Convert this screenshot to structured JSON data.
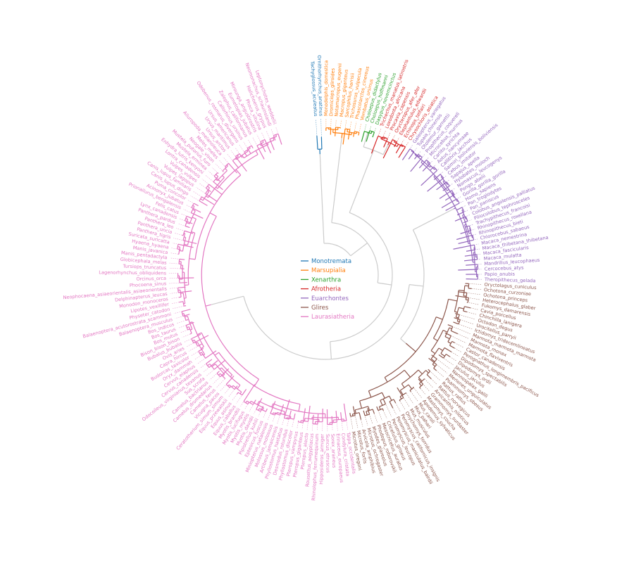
{
  "title": "",
  "legend": [
    {
      "name": "Monotremata",
      "color": "#1f77b4"
    },
    {
      "name": "Marsupialia",
      "color": "#ff7f0e"
    },
    {
      "name": "Xenarthra",
      "color": "#2ca02c"
    },
    {
      "name": "Afrotheria",
      "color": "#d62728"
    },
    {
      "name": "Euarchontes",
      "color": "#9467bd"
    },
    {
      "name": "Glires",
      "color": "#8c564b"
    },
    {
      "name": "Laurasiatheria",
      "color": "#e377c2"
    }
  ],
  "stem_color": "#cccccc",
  "clades": [
    {
      "name": "Monotremata",
      "color": "#1f77b4",
      "taxa": [
        "Tachyglossus_aculeatus",
        "Ornithorhynchus_anatinus"
      ]
    },
    {
      "name": "Marsupialia",
      "color": "#ff7f0e",
      "taxa": [
        "Monodelphis_domestica",
        "Dromiciops_gliroides",
        "Notamacropus_eugenii",
        "Macropus_giganteus",
        "Sarcophilus_harrisii",
        "Trichosurus_vulpecula",
        "Phascolarctos_cinereus",
        "Vombatus_ursinus"
      ]
    },
    {
      "name": "Xenarthra",
      "color": "#2ca02c",
      "taxa": [
        "Choloepus_didactylus",
        "Choloepus_hoffmanni",
        "Dasypus_novemcinctus"
      ]
    },
    {
      "name": "Afrotheria",
      "color": "#d62728",
      "taxa": [
        "Trichechus_manatus_latirostris",
        "Loxodonta_africana",
        "Procavia_capensis",
        "Orycteropus_afer_afer",
        "Elephantulus_edwardii",
        "Echinops_telfairi",
        "Chrysochloris_asiatica"
      ]
    },
    {
      "name": "Euarchontes",
      "color": "#9467bd",
      "taxa": [
        "Galeopterus_variegatus",
        "Tupaia_chinensis",
        "Otolemur_garnettii",
        "Propithecus_coquereli",
        "Microcebus_murinus",
        "Carlito_syrichta",
        "Aotus_nancymaae",
        "Callithrix_jacchus",
        "Saimiri_boliviensis_boliviensis",
        "Cebus_imitator",
        "Sapajus_apella",
        "Hylobates_moloch",
        "Nomascus_leucogenys",
        "Pongo_abelii",
        "Gorilla_gorilla_gorilla",
        "Homo_sapiens",
        "Pan_troglodytes",
        "Pan_paniscus",
        "Colobus_angolensis_palliatus",
        "Piliocolobus_tephrosceles",
        "Trachypithecus_francoisi",
        "Rhinopithecus_roxellana",
        "Rhinopithecus_bieti",
        "Chlorocebus_sabaeus",
        "Macaca_nemestrina",
        "Macaca_thibetana_thibetana",
        "Macaca_fascicularis",
        "Macaca_mulatta",
        "Mandrillus_leucophaeus",
        "Cercocebus_atys",
        "Papio_anubis",
        "Theropithecus_gelada"
      ]
    },
    {
      "name": "Glires",
      "color": "#8c564b",
      "taxa": [
        "Oryctolagus_cuniculus",
        "Ochotona_curzoniae",
        "Ochotona_princeps",
        "Heterocephalus_glaber",
        "Fukomys_damarensis",
        "Cavia_porcellus",
        "Chinchilla_lanigera",
        "Octodon_degus",
        "Urocitellus_parryii",
        "Ictidomys_tridecemlineatus",
        "Marmota_marmota_marmota",
        "Marmota_monax",
        "Marmota_flaviventris",
        "Castor_canadensis",
        "Perognathus_longimembris_pacificus",
        "Dipodomys_spectabilis",
        "Dipodomys_ordii",
        "Jaculus_jaculus",
        "Nannospalax_galili",
        "Meriones_unguiculatus",
        "Psammomys_obesus",
        "Rattus_rattus",
        "Rattus_norvegicus",
        "Arvicanthis_niloticus",
        "Grammomys_surdaster",
        "Mastomys_coucha",
        "Apodemus_sylvaticus",
        "Mus_caroli",
        "Mus_pahari",
        "Mus_musculus",
        "Onychomys_torridus",
        "Peromyscus_californicus_insignis",
        "Peromyscus_maniculatus_bairdii",
        "Peromyscus_leucopus",
        "Cricetulus_griseus",
        "Mesocricetus_auratus",
        "Phodopus_roborovskii",
        "Myodes_glareolus",
        "Microtus_ochrogaster",
        "Arvicola_amphibius",
        "Microtus_fortis",
        "Microtus_oregoni"
      ]
    },
    {
      "name": "Laurasiatheria",
      "color": "#e377c2",
      "taxa": [
        "Talpa_occidentalis",
        "Condylura_cristata",
        "Erinaceus_europaeus",
        "Sorex_araneus",
        "Suncus_etruscus",
        "Hipposideros_armiger",
        "Rhinolophus_ferrumequinum",
        "Rousettus_aegyptiacus",
        "Pteropus_alecto",
        "Pteropus_giganteus",
        "Pteropus_vampyrus",
        "Phyllostomus_discolor",
        "Desmodus_rotundus",
        "Phyllostomus_hastatus",
        "Artibeus_jamaicensis",
        "Molossus_molossus",
        "Miniopterus_natalensis",
        "Eptesicus_fuscus",
        "Pipistrellus_kuhlii",
        "Myotis_davidii",
        "Myotis_myotis",
        "Myotis_lucifugus",
        "Myotis_brandtii",
        "Equus_caballus",
        "Equus_asinus",
        "Equus_przewalskii",
        "Ceratotherium_simum_simum",
        "Vicugna_pacos",
        "Camelus_ferus",
        "Camelus_dromedarius",
        "Camelus_bactrianus",
        "Sus_scrofa",
        "Odocoileus_virginianus_texanus",
        "Cervus_canadensis",
        "Cervus_elaphus",
        "Oryx_dammah",
        "Budorcas_taxicolor",
        "Capra_hircus",
        "Ovis_aries",
        "Bubalus_bubalis",
        "Bison_bison_bison",
        "Bos_mutus",
        "Bos_taurus",
        "Bos_indicus",
        "Balaenoptera_musculus",
        "Balaenoptera_acutorostrata_scammoni",
        "Physeter_catodon",
        "Lipotes_vexillifer",
        "Monodon_monoceros",
        "Delphinapterus_leucas",
        "Neophocaena_asiaeorientalis_asiaeorientalis",
        "Phocoena_sinus",
        "Orcinus_orca",
        "Lagenorhynchus_obliquidens",
        "Tursiops_truncatus",
        "Globicephala_melas",
        "Manis_pentadactyla",
        "Manis_javanica",
        "Hyaena_hyaena",
        "Suricata_suricatta",
        "Panthera_tigris",
        "Panthera_uncia",
        "Panthera_leo",
        "Panthera_pardus",
        "Lynx_canadensis",
        "Felis_catus",
        "Prionailurus_bengalensis",
        "Acinonyx_jubatus",
        "Puma_concolor",
        "Canis_lupus_dingo",
        "Canis_lupus_familiaris",
        "Vulpes_lagopus",
        "Vulpes_vulpes",
        "Lontra_canadensis",
        "Enhydra_lutris_kenyoni",
        "Mustela_erminea",
        "Mustela_putorius_furo",
        "Neogale_vison",
        "Meles_meles",
        "Ailuropoda_melanoleuca",
        "Ursus_arctos",
        "Ursus_maritimus",
        "Ursus_americanus",
        "Odobenus_rosmarus_divergens",
        "Callorhinus_ursinus",
        "Zalophus_californianus",
        "Eumetopias_jubatus",
        "Mirounga_angustirostris",
        "Phoca_vitulina",
        "Halichoerus_grypus",
        "Neomonachus_schauinslandi",
        "Leptonychotes_weddellii"
      ]
    }
  ]
}
